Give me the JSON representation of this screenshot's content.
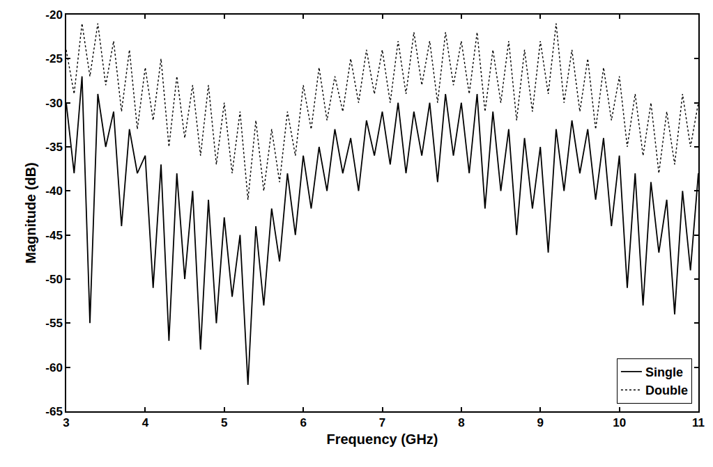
{
  "chart_data": {
    "type": "line",
    "x_label": "Frequency (GHz)",
    "y_label": "Magnitude (dB)",
    "x": [
      3.0,
      3.1,
      3.2,
      3.3,
      3.4,
      3.5,
      3.6,
      3.7,
      3.8,
      3.9,
      4.0,
      4.1,
      4.2,
      4.3,
      4.4,
      4.5,
      4.6,
      4.7,
      4.8,
      4.9,
      5.0,
      5.1,
      5.2,
      5.3,
      5.4,
      5.5,
      5.6,
      5.7,
      5.8,
      5.9,
      6.0,
      6.1,
      6.2,
      6.3,
      6.4,
      6.5,
      6.6,
      6.7,
      6.8,
      6.9,
      7.0,
      7.1,
      7.2,
      7.3,
      7.4,
      7.5,
      7.6,
      7.7,
      7.8,
      7.9,
      8.0,
      8.1,
      8.2,
      8.3,
      8.4,
      8.5,
      8.6,
      8.7,
      8.8,
      8.9,
      9.0,
      9.1,
      9.2,
      9.3,
      9.4,
      9.5,
      9.6,
      9.7,
      9.8,
      9.9,
      10.0,
      10.1,
      10.2,
      10.3,
      10.4,
      10.5,
      10.6,
      10.7,
      10.8,
      10.9,
      11.0
    ],
    "series": [
      {
        "name": "Single",
        "color": "#000000",
        "line_style": "solid",
        "values": [
          -30,
          -38,
          -27,
          -55,
          -29,
          -35,
          -31,
          -44,
          -33,
          -38,
          -36,
          -51,
          -37,
          -57,
          -38,
          -50,
          -40,
          -58,
          -41,
          -55,
          -43,
          -52,
          -45,
          -62,
          -44,
          -53,
          -42,
          -48,
          -38,
          -45,
          -36,
          -42,
          -35,
          -40,
          -33,
          -38,
          -34,
          -40,
          -32,
          -36,
          -31,
          -37,
          -30,
          -38,
          -31,
          -36,
          -30,
          -39,
          -29,
          -36,
          -30,
          -38,
          -29,
          -42,
          -31,
          -40,
          -33,
          -45,
          -34,
          -42,
          -35,
          -47,
          -33,
          -40,
          -32,
          -38,
          -33,
          -41,
          -34,
          -44,
          -36,
          -51,
          -38,
          -53,
          -39,
          -47,
          -41,
          -54,
          -40,
          -49,
          -38
        ]
      },
      {
        "name": "Double",
        "color": "#000000",
        "line_style": "dot",
        "values": [
          -24,
          -29,
          -21,
          -27,
          -21,
          -28,
          -23,
          -31,
          -24,
          -33,
          -26,
          -32,
          -25,
          -35,
          -27,
          -34,
          -28,
          -36,
          -28,
          -37,
          -30,
          -38,
          -31,
          -41,
          -32,
          -40,
          -33,
          -39,
          -31,
          -36,
          -28,
          -33,
          -26,
          -32,
          -27,
          -31,
          -25,
          -30,
          -24,
          -29,
          -24,
          -30,
          -23,
          -29,
          -22,
          -28,
          -23,
          -30,
          -22,
          -28,
          -23,
          -29,
          -22,
          -31,
          -24,
          -30,
          -23,
          -32,
          -24,
          -31,
          -23,
          -29,
          -21,
          -30,
          -24,
          -31,
          -25,
          -33,
          -26,
          -32,
          -27,
          -35,
          -29,
          -36,
          -30,
          -38,
          -31,
          -37,
          -29,
          -35,
          -30
        ]
      }
    ],
    "xlim": [
      3,
      11
    ],
    "xticks": [
      3,
      4,
      5,
      6,
      7,
      8,
      9,
      10,
      11
    ],
    "ylim": [
      -65,
      -20
    ],
    "yticks": [
      -65,
      -60,
      -55,
      -50,
      -45,
      -40,
      -35,
      -30,
      -25,
      -20
    ],
    "grid": false,
    "legend": "bottom right"
  }
}
